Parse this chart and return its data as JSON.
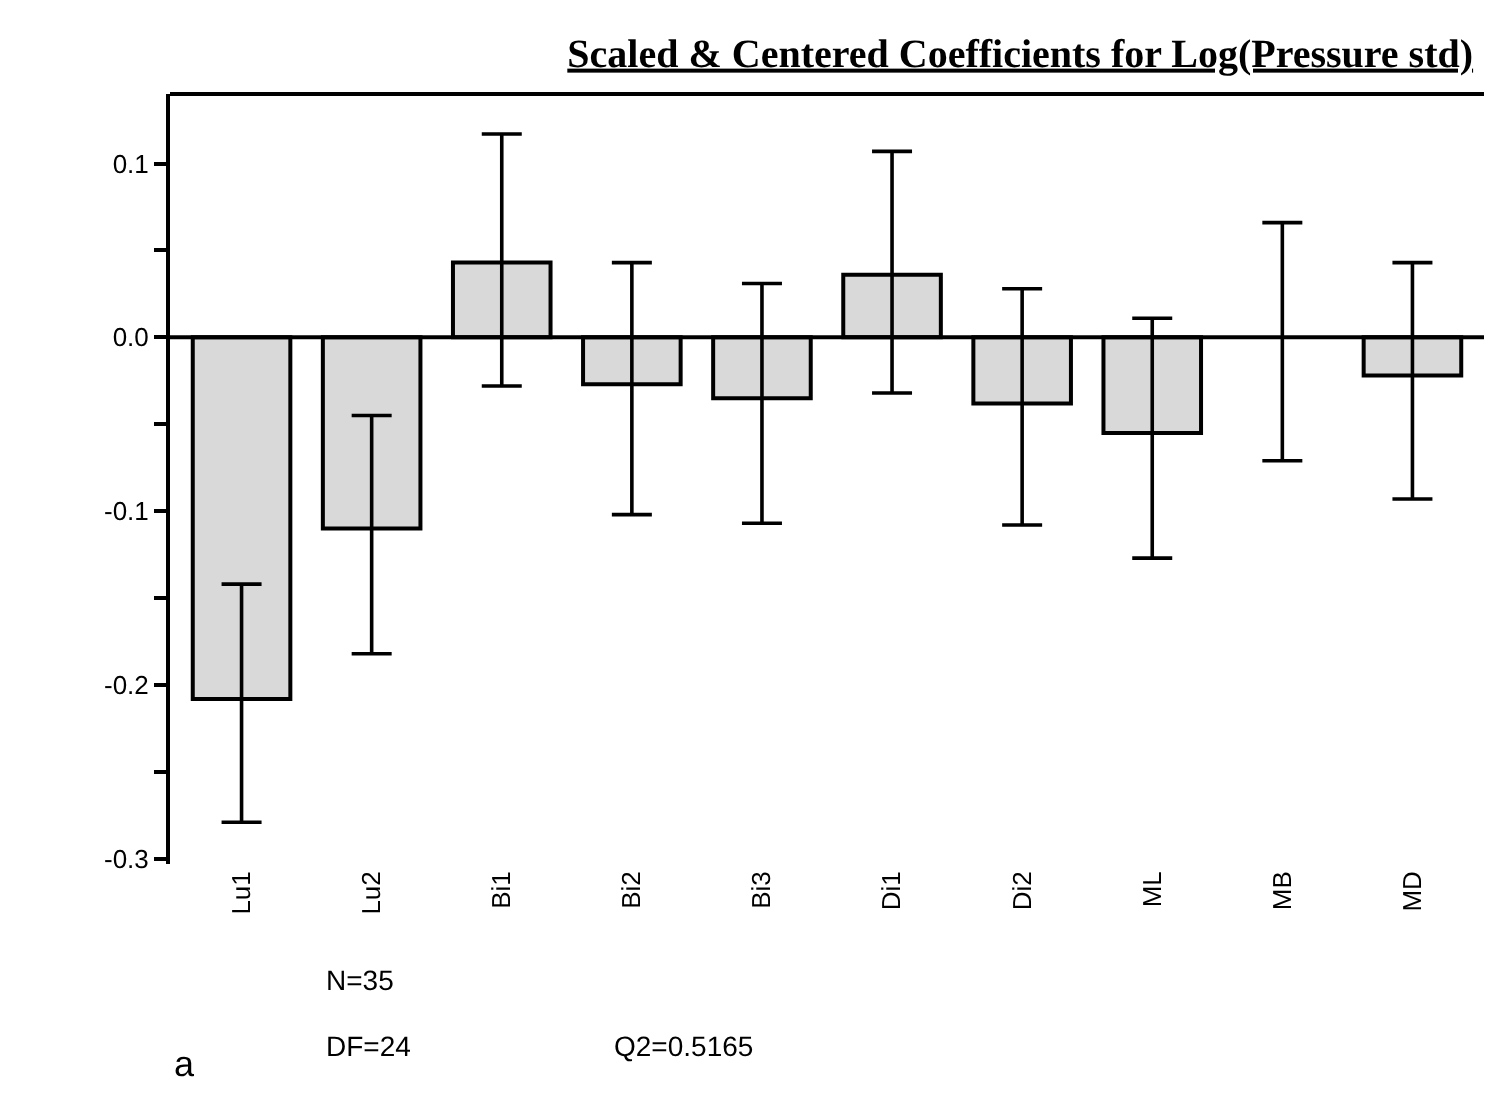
{
  "chart_data": {
    "type": "bar",
    "title": "Scaled & Centered Coefficients for Log(Pressure std)",
    "categories": [
      "Lu1",
      "Lu2",
      "Bi1",
      "Bi2",
      "Bi3",
      "Di1",
      "Di2",
      "ML",
      "MB",
      "MD"
    ],
    "values": [
      -0.208,
      -0.11,
      0.043,
      -0.027,
      -0.035,
      0.036,
      -0.038,
      -0.055,
      0.0,
      -0.022
    ],
    "errors": [
      [
        -0.279,
        -0.142
      ],
      [
        -0.182,
        -0.045
      ],
      [
        -0.028,
        0.117
      ],
      [
        -0.102,
        0.043
      ],
      [
        -0.107,
        0.031
      ],
      [
        -0.032,
        0.107
      ],
      [
        -0.108,
        0.028
      ],
      [
        -0.127,
        0.011
      ],
      [
        -0.071,
        0.066
      ],
      [
        -0.093,
        0.043
      ]
    ],
    "color": "#d9d9d9",
    "ylim": [
      -0.303,
      0.14
    ],
    "yticks": [
      -0.3,
      {
        "value": -0.25,
        "label": null
      },
      -0.2,
      {
        "value": -0.15,
        "label": null
      },
      -0.1,
      {
        "value": -0.05,
        "label": null
      },
      {
        "value": 0,
        "label": "0.0"
      },
      {
        "value": 0.05,
        "label": null
      },
      0.1
    ],
    "legend": false,
    "ref_lines": [
      {
        "axis": "y",
        "value": 0,
        "color": "#000000"
      }
    ],
    "annotations": [
      "N=35",
      "DF=24",
      "Q2=0.5165",
      "a"
    ]
  }
}
